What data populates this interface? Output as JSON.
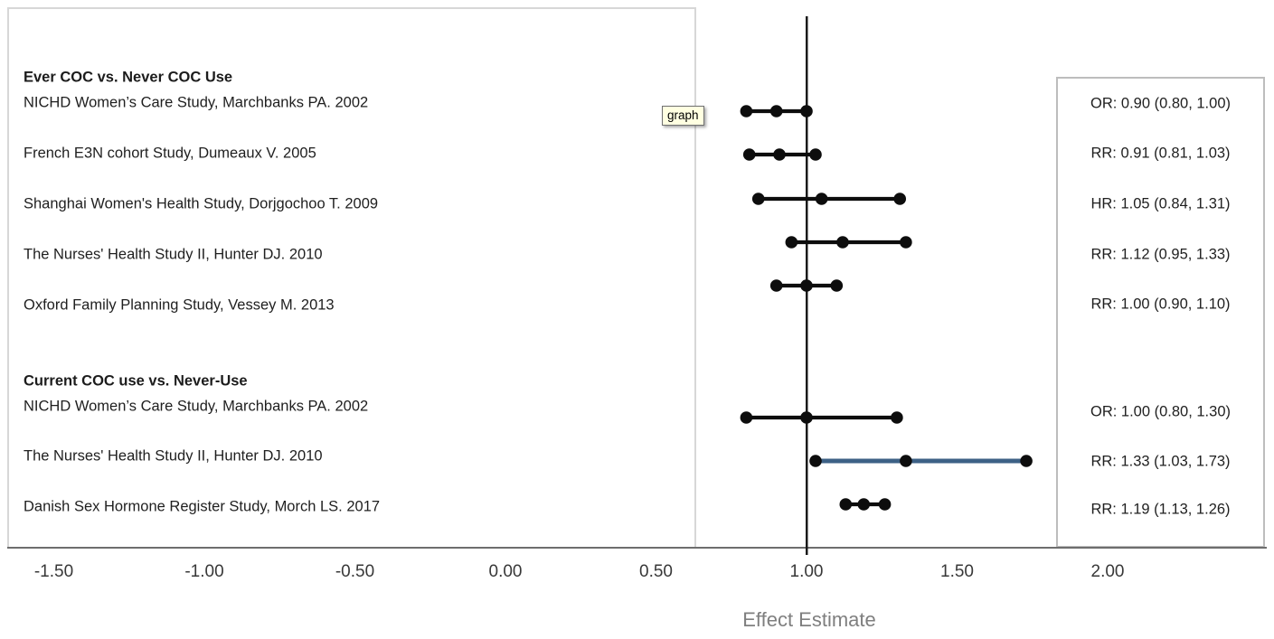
{
  "chart_data": {
    "type": "scatter",
    "subtype": "forest_plot",
    "title": "",
    "xlabel": "Effect Estimate",
    "ylabel": "",
    "grid": false,
    "xlim": [
      -1.76,
      2.53
    ],
    "x_tick_values": [
      -1.5,
      -1.0,
      -0.5,
      0.0,
      0.5,
      1.0,
      1.5,
      2.0
    ],
    "x_tick_labels": [
      "-1.50",
      "-1.00",
      "-0.50",
      "0.00",
      "0.50",
      "1.00",
      "1.50",
      "2.00"
    ],
    "reference_line_x": 1.0,
    "groups": [
      {
        "header": "Ever COC vs. Never COC Use",
        "rows": [
          {
            "study": "NICHD Women’s Care Study, Marchbanks PA. 2002",
            "measure": "OR",
            "estimate": 0.9,
            "ci_low": 0.8,
            "ci_high": 1.0,
            "estimate_label": "OR: 0.90 (0.80, 1.00)",
            "highlight": false
          },
          {
            "study": "French E3N cohort Study, Dumeaux V. 2005",
            "measure": "RR",
            "estimate": 0.91,
            "ci_low": 0.81,
            "ci_high": 1.03,
            "estimate_label": "RR: 0.91 (0.81, 1.03)",
            "highlight": false
          },
          {
            "study": "Shanghai Women's Health Study, Dorjgochoo T. 2009",
            "measure": "HR",
            "estimate": 1.05,
            "ci_low": 0.84,
            "ci_high": 1.31,
            "estimate_label": "HR: 1.05 (0.84, 1.31)",
            "highlight": false
          },
          {
            "study": "The Nurses' Health Study II, Hunter DJ. 2010",
            "measure": "RR",
            "estimate": 1.12,
            "ci_low": 0.95,
            "ci_high": 1.33,
            "estimate_label": "RR: 1.12 (0.95, 1.33)",
            "highlight": false
          },
          {
            "study": "Oxford Family Planning Study, Vessey M. 2013",
            "measure": "RR",
            "estimate": 1.0,
            "ci_low": 0.9,
            "ci_high": 1.1,
            "estimate_label": "RR: 1.00 (0.90, 1.10)",
            "highlight": false
          }
        ]
      },
      {
        "header": "Current COC use vs. Never-Use",
        "rows": [
          {
            "study": "NICHD Women’s Care Study, Marchbanks PA. 2002",
            "measure": "OR",
            "estimate": 1.0,
            "ci_low": 0.8,
            "ci_high": 1.3,
            "estimate_label": "OR: 1.00 (0.80, 1.30)",
            "highlight": false
          },
          {
            "study": "The Nurses' Health Study II, Hunter DJ. 2010",
            "measure": "RR",
            "estimate": 1.33,
            "ci_low": 1.03,
            "ci_high": 1.73,
            "estimate_label": "RR: 1.33 (1.03, 1.73)",
            "highlight": true
          },
          {
            "study": "Danish Sex Hormone Register Study, Morch LS. 2017",
            "measure": "RR",
            "estimate": 1.19,
            "ci_low": 1.13,
            "ci_high": 1.26,
            "estimate_label": "RR: 1.19 (1.13, 1.26)",
            "highlight": false
          }
        ]
      }
    ]
  },
  "tooltip": {
    "text": "graph"
  },
  "colors": {
    "marker": "#0d0d0d",
    "ci_line": "#0d0d0d",
    "ci_line_highlight": "#3d6186",
    "reference_line": "#1a1a1a",
    "axis_line": "#6e6e6e",
    "tick_label": "#383838",
    "axis_title": "#7f7f7f",
    "tooltip_bg": "#ffffe1",
    "tooltip_border": "#707070"
  }
}
